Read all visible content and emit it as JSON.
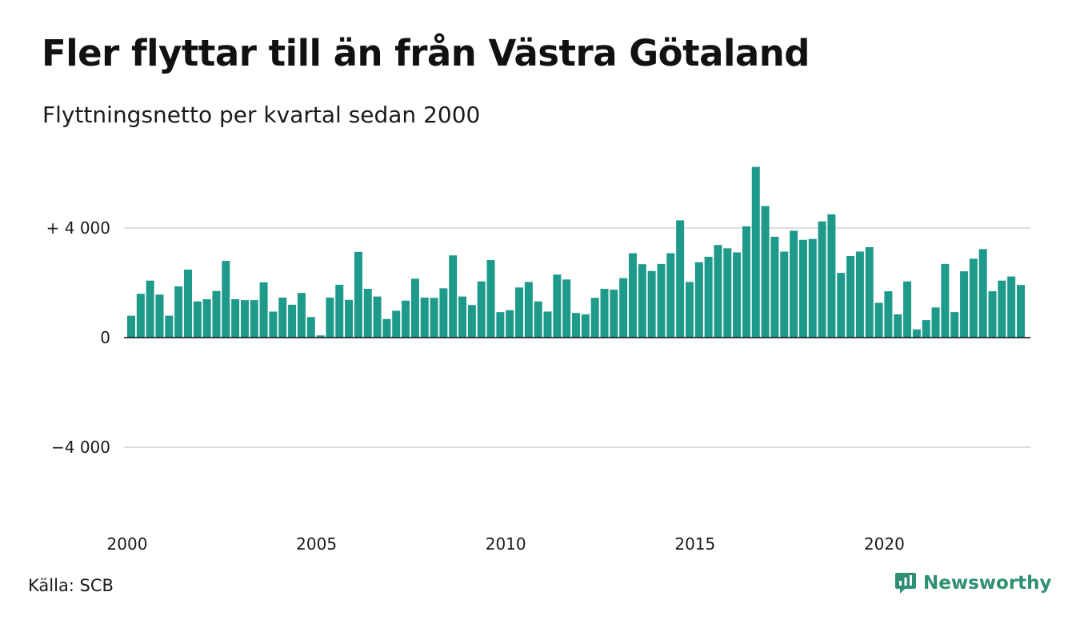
{
  "title": "Fler flyttar till än från Västra Götaland",
  "subtitle": "Flyttningsnetto per kvartal sedan 2000",
  "source": "Källa: SCB",
  "brand": {
    "name": "Newsworthy",
    "icon": "newsworthy-chart-bubble-icon",
    "color": "#2f8f75"
  },
  "colors": {
    "bar": "#1e9a8b",
    "grid": "#dedede",
    "zero_line": "#111111"
  },
  "chart_data": {
    "type": "bar",
    "title": "",
    "xlabel": "",
    "ylabel": "",
    "ylim": [
      -6000,
      7000
    ],
    "y_ticks": [
      {
        "value": 4000,
        "label": "+ 4 000"
      },
      {
        "value": 0,
        "label": "0"
      },
      {
        "value": -4000,
        "label": "−4 000"
      }
    ],
    "x_start_year": 2000,
    "quarters_per_year": 4,
    "x_ticks": [
      "2000",
      "2005",
      "2010",
      "2015",
      "2020"
    ],
    "grid": true,
    "values": [
      800,
      1600,
      2080,
      1570,
      800,
      1870,
      2480,
      1320,
      1400,
      1700,
      2800,
      1400,
      1370,
      1370,
      2020,
      950,
      1460,
      1200,
      1630,
      750,
      80,
      1460,
      1930,
      1380,
      3130,
      1780,
      1500,
      680,
      980,
      1350,
      2150,
      1460,
      1450,
      1800,
      3000,
      1500,
      1190,
      2050,
      2830,
      930,
      1000,
      1830,
      2030,
      1320,
      950,
      2300,
      2120,
      900,
      850,
      1450,
      1780,
      1750,
      2170,
      3080,
      2680,
      2430,
      2690,
      3080,
      4280,
      2030,
      2750,
      2950,
      3380,
      3260,
      3110,
      4060,
      6230,
      4800,
      3680,
      3140,
      3900,
      3570,
      3600,
      4240,
      4500,
      2360,
      2980,
      3140,
      3300,
      1270,
      1690,
      850,
      2050,
      300,
      640,
      1100,
      2690,
      930,
      2420,
      2880,
      3230,
      1690,
      2080,
      2230,
      1920
    ]
  }
}
